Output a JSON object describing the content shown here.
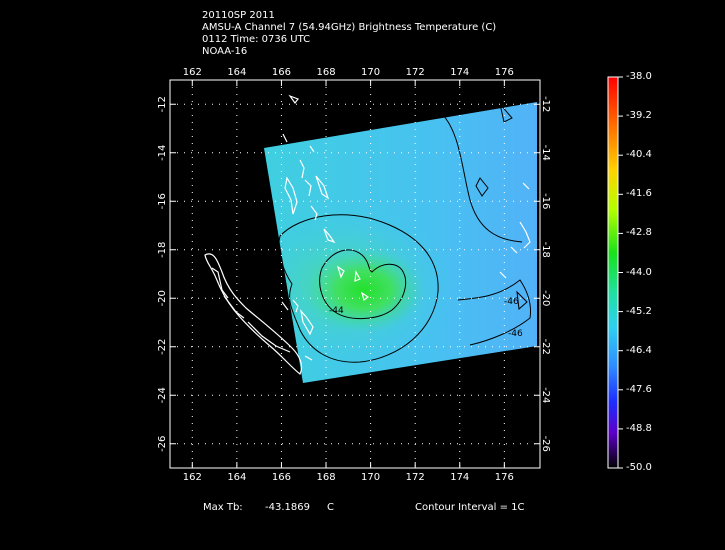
{
  "header": {
    "storm_line": "20110SP 2011",
    "product_line": "AMSU-A Channel 7 (54.94GHz) Brightness Temperature (C)",
    "time_line": "0112 Time: 0736 UTC",
    "satellite_line": "NOAA-16"
  },
  "map": {
    "lon_ticks": [
      "162",
      "164",
      "166",
      "168",
      "170",
      "172",
      "174",
      "176"
    ],
    "lat_ticks": [
      "-12",
      "-14",
      "-16",
      "-18",
      "-20",
      "-22",
      "-24",
      "-26"
    ],
    "lon_range": [
      161,
      177.6
    ],
    "lat_range": [
      -11,
      -27
    ],
    "contour_labels": [
      "-44",
      "-46",
      "-46"
    ],
    "colors": {
      "background": "#000000",
      "coastline": "#ffffff",
      "contour": "#000000",
      "grid": "#ffffff"
    }
  },
  "colorbar": {
    "labels": [
      "-38.0",
      "-39.2",
      "-40.4",
      "-41.6",
      "-42.8",
      "-44.0",
      "-45.2",
      "-46.4",
      "-47.6",
      "-48.8",
      "-50.0"
    ]
  },
  "footer": {
    "max_tb_label": "Max Tb:",
    "max_tb_value": "-43.1869",
    "max_tb_unit": "C",
    "contour_interval": "Contour Interval = 1C"
  }
}
